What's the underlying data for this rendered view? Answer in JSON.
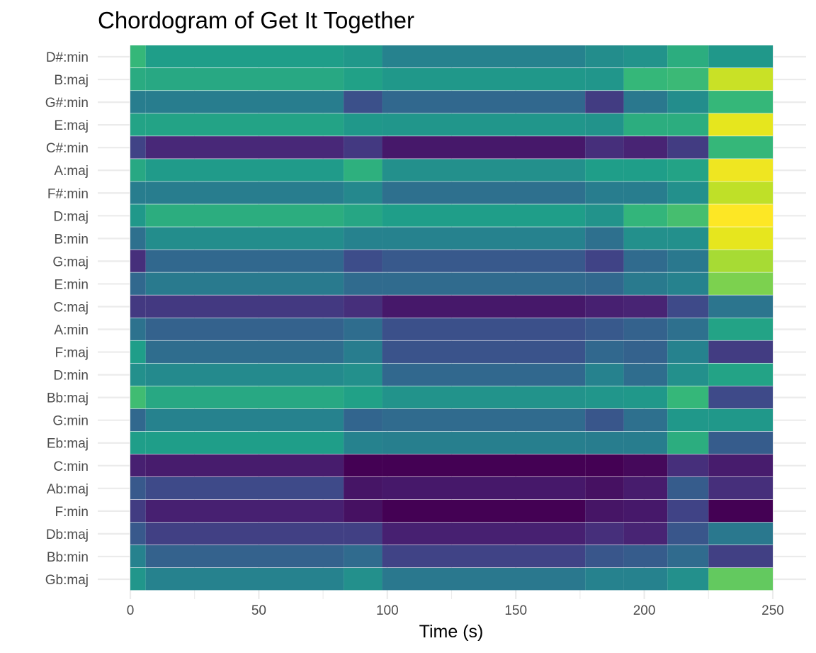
{
  "chart_data": {
    "type": "heatmap",
    "title": "Chordogram of Get It Together",
    "xlabel": "Time (s)",
    "ylabel": "",
    "xlim": [
      0,
      250
    ],
    "x_ticks": [
      0,
      50,
      100,
      150,
      200,
      250
    ],
    "x_tick_labels": [
      "0",
      "50",
      "100",
      "150",
      "200",
      "250"
    ],
    "grid": true,
    "colormap": "viridis",
    "color_scale": "0 = dark purple (#440154), 1 = yellow (#fde725); values are relative intensity",
    "segments": [
      {
        "start": 0,
        "end": 6
      },
      {
        "start": 6,
        "end": 83
      },
      {
        "start": 83,
        "end": 98
      },
      {
        "start": 98,
        "end": 177
      },
      {
        "start": 177,
        "end": 192
      },
      {
        "start": 192,
        "end": 209
      },
      {
        "start": 209,
        "end": 225
      },
      {
        "start": 225,
        "end": 250
      }
    ],
    "rows": [
      {
        "label": "D#:min",
        "values": [
          0.6,
          0.5,
          0.48,
          0.4,
          0.44,
          0.46,
          0.56,
          0.48
        ]
      },
      {
        "label": "B:maj",
        "values": [
          0.55,
          0.54,
          0.51,
          0.48,
          0.47,
          0.6,
          0.61,
          0.84
        ]
      },
      {
        "label": "G#:min",
        "values": [
          0.38,
          0.38,
          0.22,
          0.3,
          0.16,
          0.36,
          0.44,
          0.6
        ]
      },
      {
        "label": "E:maj",
        "values": [
          0.52,
          0.52,
          0.48,
          0.47,
          0.46,
          0.56,
          0.56,
          0.9
        ]
      },
      {
        "label": "C#:min",
        "values": [
          0.18,
          0.1,
          0.15,
          0.06,
          0.12,
          0.09,
          0.16,
          0.6
        ]
      },
      {
        "label": "A:maj",
        "values": [
          0.54,
          0.49,
          0.57,
          0.45,
          0.5,
          0.5,
          0.52,
          0.94
        ]
      },
      {
        "label": "F#:min",
        "values": [
          0.38,
          0.38,
          0.42,
          0.33,
          0.38,
          0.38,
          0.45,
          0.82
        ]
      },
      {
        "label": "D:maj",
        "values": [
          0.48,
          0.56,
          0.53,
          0.5,
          0.46,
          0.59,
          0.63,
          1.0
        ]
      },
      {
        "label": "B:min",
        "values": [
          0.33,
          0.44,
          0.4,
          0.4,
          0.33,
          0.45,
          0.45,
          0.9
        ]
      },
      {
        "label": "G:maj",
        "values": [
          0.12,
          0.3,
          0.21,
          0.25,
          0.18,
          0.31,
          0.36,
          0.78
        ]
      },
      {
        "label": "E:min",
        "values": [
          0.3,
          0.37,
          0.31,
          0.31,
          0.3,
          0.37,
          0.4,
          0.72
        ]
      },
      {
        "label": "C:maj",
        "values": [
          0.15,
          0.15,
          0.12,
          0.06,
          0.08,
          0.09,
          0.2,
          0.35
        ]
      },
      {
        "label": "A:min",
        "values": [
          0.34,
          0.28,
          0.32,
          0.22,
          0.25,
          0.28,
          0.33,
          0.52
        ]
      },
      {
        "label": "F:maj",
        "values": [
          0.5,
          0.32,
          0.38,
          0.23,
          0.3,
          0.28,
          0.4,
          0.16
        ]
      },
      {
        "label": "D:min",
        "values": [
          0.45,
          0.43,
          0.45,
          0.3,
          0.4,
          0.32,
          0.45,
          0.52
        ]
      },
      {
        "label": "Bb:maj",
        "values": [
          0.62,
          0.54,
          0.51,
          0.46,
          0.47,
          0.48,
          0.6,
          0.2
        ]
      },
      {
        "label": "G:min",
        "values": [
          0.3,
          0.4,
          0.29,
          0.31,
          0.24,
          0.33,
          0.48,
          0.48
        ]
      },
      {
        "label": "Eb:maj",
        "values": [
          0.5,
          0.5,
          0.4,
          0.39,
          0.38,
          0.38,
          0.56,
          0.26
        ]
      },
      {
        "label": "C:min",
        "values": [
          0.08,
          0.07,
          0.0,
          0.0,
          0.0,
          0.02,
          0.12,
          0.07
        ]
      },
      {
        "label": "Ab:maj",
        "values": [
          0.25,
          0.2,
          0.05,
          0.06,
          0.04,
          0.07,
          0.26,
          0.12
        ]
      },
      {
        "label": "F:min",
        "values": [
          0.16,
          0.08,
          0.04,
          0.0,
          0.05,
          0.06,
          0.18,
          0.0
        ]
      },
      {
        "label": "Db:maj",
        "values": [
          0.25,
          0.17,
          0.17,
          0.08,
          0.12,
          0.09,
          0.24,
          0.36
        ]
      },
      {
        "label": "Bb:min",
        "values": [
          0.4,
          0.28,
          0.31,
          0.18,
          0.24,
          0.26,
          0.31,
          0.17
        ]
      },
      {
        "label": "Gb:maj",
        "values": [
          0.47,
          0.4,
          0.45,
          0.36,
          0.4,
          0.4,
          0.45,
          0.68
        ]
      }
    ]
  }
}
